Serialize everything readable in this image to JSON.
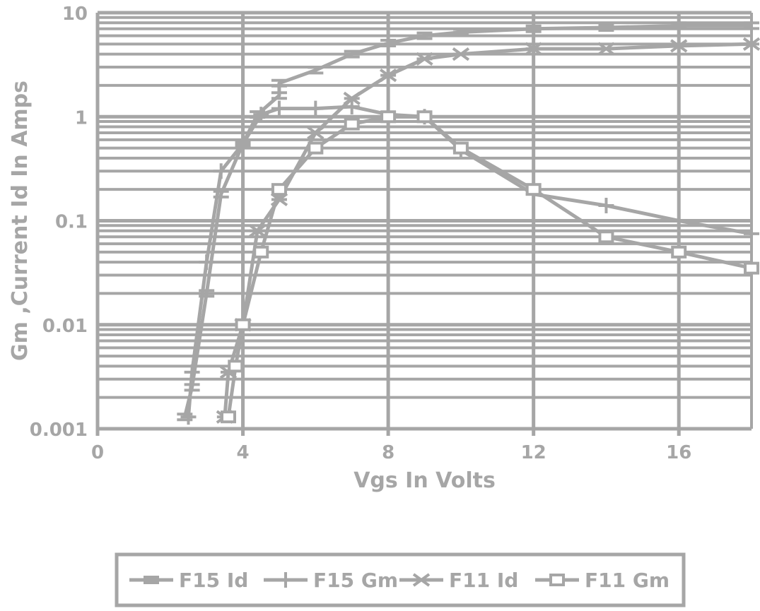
{
  "chart_data": {
    "type": "line",
    "xlabel": "Vgs In Volts",
    "ylabel": "Gm ,Current Id In Amps",
    "xlim": [
      0,
      18
    ],
    "ylim": [
      0.001,
      10
    ],
    "y_scale": "log",
    "grid": true,
    "legend_position": "bottom",
    "x_tick_labels": [
      "0",
      "4",
      "8",
      "12",
      "16"
    ],
    "x_tick_values": [
      0,
      4,
      8,
      12,
      16
    ],
    "y_tick_labels": [
      "0.001",
      "0.01",
      "0.1",
      "1",
      "10"
    ],
    "y_tick_values": [
      0.001,
      0.01,
      0.1,
      1,
      10
    ],
    "line_color": "#a6a6a6",
    "series": [
      {
        "name": "F15 Id",
        "marker": "double-dash",
        "points": [
          [
            2.4,
            0.0013
          ],
          [
            2.6,
            0.0025
          ],
          [
            3.0,
            0.02
          ],
          [
            3.4,
            0.18
          ],
          [
            4.0,
            0.55
          ],
          [
            4.4,
            1.05
          ],
          [
            5.0,
            1.6
          ],
          [
            5.0,
            2.1
          ],
          [
            6.0,
            2.8
          ],
          [
            7.0,
            4.0
          ],
          [
            8.0,
            5.1
          ],
          [
            9.0,
            6.0
          ],
          [
            10.0,
            6.5
          ],
          [
            12.0,
            7.0
          ],
          [
            14.0,
            7.2
          ],
          [
            16.0,
            7.5
          ],
          [
            18.0,
            7.5
          ]
        ]
      },
      {
        "name": "F15 Gm",
        "marker": "plus",
        "points": [
          [
            2.5,
            0.0013
          ],
          [
            2.6,
            0.0035
          ],
          [
            3.0,
            0.04
          ],
          [
            3.4,
            0.3
          ],
          [
            4.0,
            0.55
          ],
          [
            4.5,
            1.05
          ],
          [
            5.0,
            1.2
          ],
          [
            6.0,
            1.2
          ],
          [
            7.0,
            1.25
          ],
          [
            8.0,
            1.05
          ],
          [
            9.0,
            1.0
          ],
          [
            10.0,
            0.48
          ],
          [
            12.0,
            0.18
          ],
          [
            14.0,
            0.14
          ],
          [
            16.0,
            0.1
          ],
          [
            18.0,
            0.075
          ]
        ]
      },
      {
        "name": "F11 Id",
        "marker": "cross",
        "points": [
          [
            3.5,
            0.0013
          ],
          [
            3.6,
            0.0035
          ],
          [
            4.0,
            0.01
          ],
          [
            4.4,
            0.08
          ],
          [
            5.0,
            0.16
          ],
          [
            6.0,
            0.7
          ],
          [
            7.0,
            1.5
          ],
          [
            8.0,
            2.5
          ],
          [
            9.0,
            3.6
          ],
          [
            10.0,
            4.0
          ],
          [
            12.0,
            4.5
          ],
          [
            14.0,
            4.5
          ],
          [
            16.0,
            4.8
          ],
          [
            18.0,
            5.0
          ]
        ]
      },
      {
        "name": "F11 Gm",
        "marker": "square",
        "points": [
          [
            3.6,
            0.0013
          ],
          [
            3.8,
            0.004
          ],
          [
            4.0,
            0.01
          ],
          [
            4.5,
            0.05
          ],
          [
            5.0,
            0.2
          ],
          [
            6.0,
            0.5
          ],
          [
            7.0,
            0.85
          ],
          [
            8.0,
            1.0
          ],
          [
            9.0,
            1.0
          ],
          [
            10.0,
            0.5
          ],
          [
            12.0,
            0.2
          ],
          [
            14.0,
            0.07
          ],
          [
            16.0,
            0.05
          ],
          [
            18.0,
            0.035
          ]
        ]
      }
    ]
  }
}
